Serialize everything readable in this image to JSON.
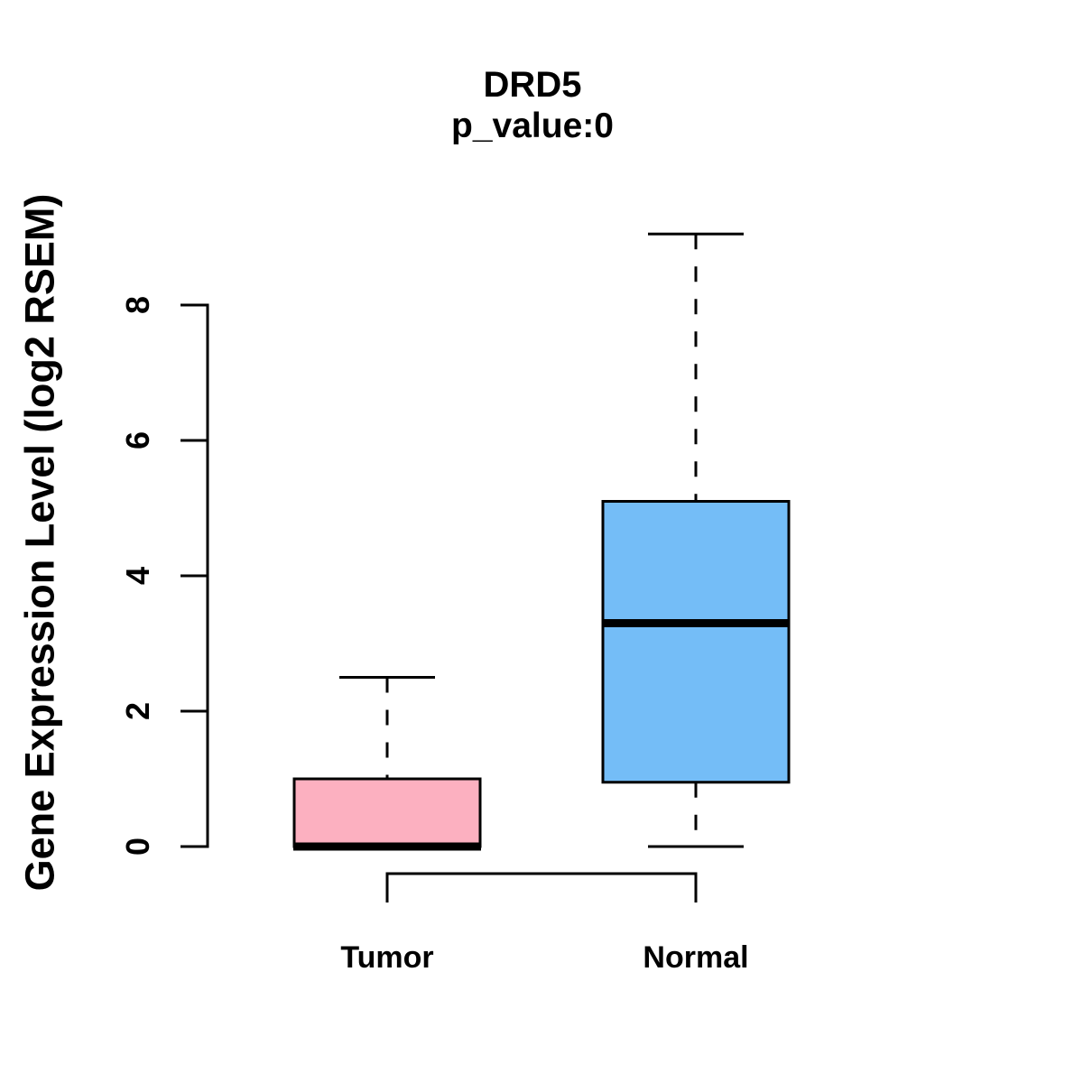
{
  "chart_data": {
    "type": "boxplot",
    "title": "DRD5",
    "subtitle": "p_value:0",
    "ylabel": "Gene Expression Level (log2 RSEM)",
    "xlabel": "",
    "ylim": [
      0,
      9.2
    ],
    "yticks": [
      0,
      2,
      4,
      6,
      8
    ],
    "grid": false,
    "legend": "none",
    "categories": [
      "Tumor",
      "Normal"
    ],
    "series": [
      {
        "name": "Tumor",
        "box_color": "#FCB0C0",
        "whisker_low": 0,
        "q1": 0,
        "median": 0,
        "q3": 1.0,
        "whisker_high": 2.5
      },
      {
        "name": "Normal",
        "box_color": "#74BDF7",
        "whisker_low": 0,
        "q1": 0.95,
        "median": 3.3,
        "q3": 5.1,
        "whisker_high": 9.05
      }
    ],
    "comparison_bracket": {
      "groups": [
        "Tumor",
        "Normal"
      ],
      "label": ""
    },
    "line_color": "#000000",
    "background_color": "#FFFFFF"
  }
}
